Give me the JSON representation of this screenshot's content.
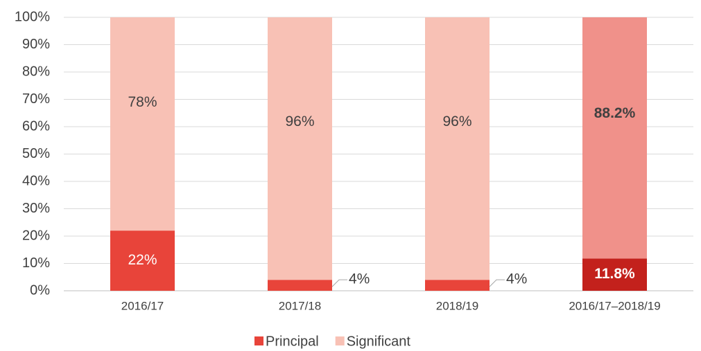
{
  "chart_data": {
    "type": "stacked_bar",
    "categories": [
      "2016/17",
      "2017/18",
      "2018/19",
      "2016/17–2018/19"
    ],
    "series": [
      {
        "name": "Principal",
        "color": "#e8443a",
        "colors": [
          "#e8443a",
          "#e8443a",
          "#e8443a",
          "#c3211c"
        ],
        "values": [
          22,
          4,
          4,
          11.8
        ],
        "value_labels": [
          "22%",
          "4%",
          "4%",
          "11.8%"
        ]
      },
      {
        "name": "Significant",
        "color": "#f8c1b5",
        "colors": [
          "#f8c1b5",
          "#f8c1b5",
          "#f8c1b5",
          "#f0918a"
        ],
        "values": [
          78,
          96,
          96,
          88.2
        ],
        "value_labels": [
          "78%",
          "96%",
          "96%",
          "88.2%"
        ]
      }
    ],
    "ylim": [
      0,
      100
    ],
    "yticks": [
      {
        "value": 0,
        "label": "0%"
      },
      {
        "value": 10,
        "label": "10%"
      },
      {
        "value": 20,
        "label": "20%"
      },
      {
        "value": 30,
        "label": "30%"
      },
      {
        "value": 40,
        "label": "40%"
      },
      {
        "value": 50,
        "label": "50%"
      },
      {
        "value": 60,
        "label": "60%"
      },
      {
        "value": 70,
        "label": "70%"
      },
      {
        "value": 80,
        "label": "80%"
      },
      {
        "value": 90,
        "label": "90%"
      },
      {
        "value": 100,
        "label": "100%"
      }
    ],
    "grid": true,
    "legend": "bottom"
  }
}
